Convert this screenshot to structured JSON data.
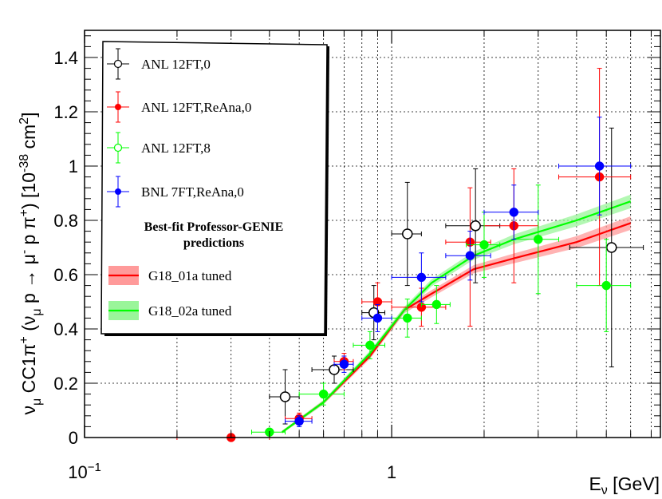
{
  "chart_data": {
    "type": "scatter",
    "x_scale": "log",
    "xlim": [
      0.1,
      7.5
    ],
    "ylim": [
      0,
      1.5
    ],
    "xlabel": "E_ν [GeV]",
    "ylabel": "ν_μ CC1π⁺ (ν_μ p → μ⁻ p π⁺) [10⁻³⁸ cm²]",
    "x_ticks": [
      {
        "v": 0.1,
        "base": "10",
        "exp": "−1"
      },
      {
        "v": 1,
        "base": "1",
        "exp": ""
      }
    ],
    "y_ticks": [
      0,
      0.2,
      0.4,
      0.6,
      0.8,
      1,
      1.2,
      1.4
    ],
    "y_tick_labels": [
      "0",
      "0.2",
      "0.4",
      "0.6",
      "0.8",
      "1",
      "1.2",
      "1.4"
    ],
    "grid": true,
    "legend_position": "top-left",
    "legend_heading": [
      "Best-fit Professor-GENIE",
      "predictions"
    ],
    "series": [
      {
        "name": "ANL 12FT,0",
        "color": "#000000",
        "marker": "open-circle",
        "points": [
          {
            "x": 0.45,
            "y": 0.15,
            "xerr": [
              0.05,
              0.05
            ],
            "yerr": [
              0.1,
              0.1
            ]
          },
          {
            "x": 0.65,
            "y": 0.25,
            "xerr": [
              0.1,
              0.1
            ],
            "yerr": [
              0.05,
              0.05
            ]
          },
          {
            "x": 0.875,
            "y": 0.46,
            "xerr": [
              0.075,
              0.075
            ],
            "yerr": [
              0.1,
              0.1
            ]
          },
          {
            "x": 1.125,
            "y": 0.75,
            "xerr": [
              0.125,
              0.125
            ],
            "yerr": [
              0.19,
              0.19
            ]
          },
          {
            "x": 1.875,
            "y": 0.78,
            "xerr": [
              0.375,
              0.375
            ],
            "yerr": [
              0.21,
              0.21
            ]
          },
          {
            "x": 5.2,
            "y": 0.7,
            "xerr": [
              1.4,
              1.4
            ],
            "yerr": [
              0.44,
              0.44
            ]
          }
        ]
      },
      {
        "name": "ANL 12FT,ReAna,0",
        "color": "#ff0000",
        "marker": "filled-circle",
        "points": [
          {
            "x": 0.3,
            "y": 0.0,
            "xerr": [
              0.1,
              0.1
            ],
            "yerr": [
              0,
              0
            ]
          },
          {
            "x": 0.5,
            "y": 0.07,
            "xerr": [
              0.05,
              0.05
            ],
            "yerr": [
              0.02,
              0.02
            ]
          },
          {
            "x": 0.7,
            "y": 0.28,
            "xerr": [
              0.05,
              0.05
            ],
            "yerr": [
              0.03,
              0.03
            ]
          },
          {
            "x": 0.9,
            "y": 0.5,
            "xerr": [
              0.1,
              0.1
            ],
            "yerr": [
              0.07,
              0.07
            ]
          },
          {
            "x": 1.25,
            "y": 0.48,
            "xerr": [
              0.25,
              0.25
            ],
            "yerr": [
              0.07,
              0.07
            ]
          },
          {
            "x": 1.8,
            "y": 0.72,
            "xerr": [
              0.3,
              0.3
            ],
            "yerr": [
              0.31,
              0.2
            ]
          },
          {
            "x": 2.5,
            "y": 0.78,
            "xerr": [
              0.5,
              0.5
            ],
            "yerr": [
              0.21,
              0.21
            ]
          },
          {
            "x": 4.75,
            "y": 0.96,
            "xerr": [
              1.25,
              1.25
            ],
            "yerr": [
              0.4,
              0.4
            ]
          }
        ]
      },
      {
        "name": "ANL 12FT,8",
        "color": "#00ff00",
        "marker": "filled-circle",
        "points": [
          {
            "x": 0.4,
            "y": 0.02,
            "xerr": [
              0.05,
              0.05
            ],
            "yerr": [
              0,
              0
            ]
          },
          {
            "x": 0.6,
            "y": 0.16,
            "xerr": [
              0.1,
              0.1
            ],
            "yerr": [
              0.04,
              0.04
            ]
          },
          {
            "x": 0.85,
            "y": 0.34,
            "xerr": [
              0.1,
              0.1
            ],
            "yerr": [
              0.05,
              0.05
            ]
          },
          {
            "x": 1.125,
            "y": 0.44,
            "xerr": [
              0.125,
              0.125
            ],
            "yerr": [
              0.07,
              0.07
            ]
          },
          {
            "x": 1.4,
            "y": 0.49,
            "xerr": [
              0.15,
              0.15
            ],
            "yerr": [
              0.07,
              0.07
            ]
          },
          {
            "x": 2.0,
            "y": 0.71,
            "xerr": [
              0.25,
              0.25
            ],
            "yerr": [
              0.12,
              0.12
            ]
          },
          {
            "x": 3.0,
            "y": 0.73,
            "xerr": [
              0.5,
              0.5
            ],
            "yerr": [
              0.2,
              0.2
            ]
          },
          {
            "x": 5.0,
            "y": 0.56,
            "xerr": [
              1.0,
              1.0
            ],
            "yerr": [
              0.17,
              0.17
            ]
          }
        ]
      },
      {
        "name": "BNL 7FT,ReAna,0",
        "color": "#0000ff",
        "marker": "filled-circle",
        "points": [
          {
            "x": 0.5,
            "y": 0.06,
            "xerr": [
              0.05,
              0.05
            ],
            "yerr": [
              0.02,
              0.02
            ]
          },
          {
            "x": 0.7,
            "y": 0.27,
            "xerr": [
              0.05,
              0.05
            ],
            "yerr": [
              0.03,
              0.03
            ]
          },
          {
            "x": 0.9,
            "y": 0.44,
            "xerr": [
              0.1,
              0.1
            ],
            "yerr": [
              0.05,
              0.05
            ]
          },
          {
            "x": 1.25,
            "y": 0.59,
            "xerr": [
              0.25,
              0.25
            ],
            "yerr": [
              0.09,
              0.09
            ]
          },
          {
            "x": 1.8,
            "y": 0.67,
            "xerr": [
              0.3,
              0.3
            ],
            "yerr": [
              0.09,
              0.09
            ]
          },
          {
            "x": 2.5,
            "y": 0.83,
            "xerr": [
              0.5,
              0.5
            ],
            "yerr": [
              0.1,
              0.1
            ]
          },
          {
            "x": 4.75,
            "y": 1.0,
            "xerr": [
              1.25,
              1.25
            ],
            "yerr": [
              0.18,
              0.18
            ]
          }
        ]
      }
    ],
    "curves": [
      {
        "name": "G18_01a tuned",
        "color": "#ff0000",
        "band_color": "#ff9a9a",
        "points": [
          [
            0.44,
            0.02
          ],
          [
            0.6,
            0.13
          ],
          [
            0.85,
            0.3
          ],
          [
            1.1,
            0.47
          ],
          [
            1.35,
            0.53
          ],
          [
            1.85,
            0.62
          ],
          [
            2.5,
            0.66
          ],
          [
            4.0,
            0.72
          ],
          [
            6.0,
            0.79
          ]
        ],
        "band_halfwidth": [
          0.005,
          0.008,
          0.01,
          0.012,
          0.013,
          0.015,
          0.018,
          0.022,
          0.025
        ]
      },
      {
        "name": "G18_02a tuned",
        "color": "#00ff00",
        "band_color": "#9af59a",
        "points": [
          [
            0.44,
            0.02
          ],
          [
            0.6,
            0.13
          ],
          [
            0.85,
            0.31
          ],
          [
            1.1,
            0.47
          ],
          [
            1.35,
            0.57
          ],
          [
            1.85,
            0.67
          ],
          [
            2.5,
            0.73
          ],
          [
            4.0,
            0.8
          ],
          [
            6.0,
            0.87
          ]
        ],
        "band_halfwidth": [
          0.005,
          0.008,
          0.01,
          0.012,
          0.013,
          0.015,
          0.018,
          0.022,
          0.025
        ]
      }
    ]
  }
}
